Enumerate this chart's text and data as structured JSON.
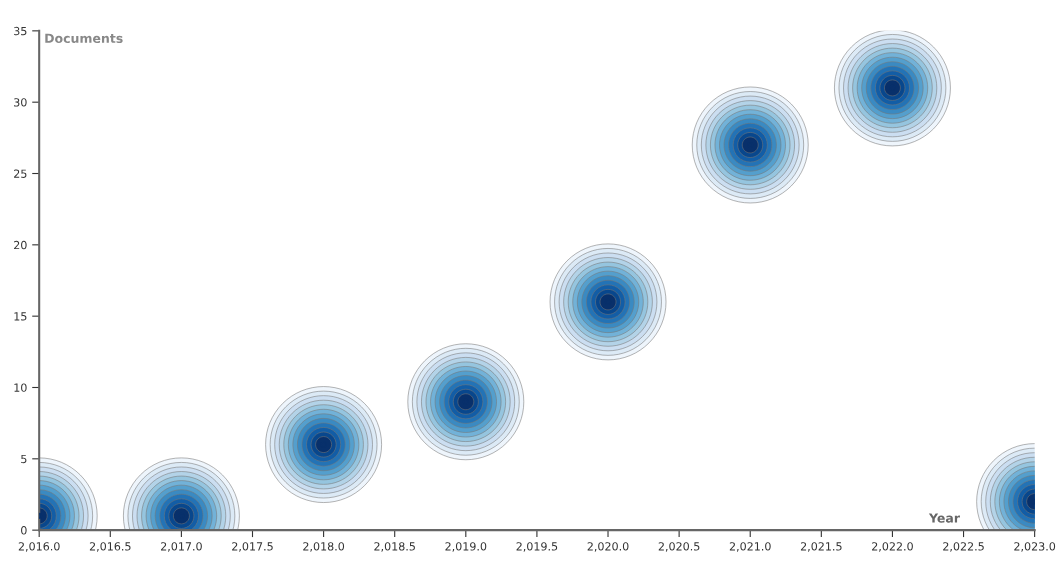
{
  "chart_data": {
    "type": "scatter",
    "xlabel": "Year",
    "ylabel": "Documents",
    "x": [
      2016,
      2017,
      2018,
      2019,
      2020,
      2021,
      2022,
      2023
    ],
    "series": [
      {
        "color": "#08306b",
        "values": [
          1,
          1,
          6,
          9,
          16,
          27,
          31,
          2
        ]
      }
    ],
    "marker": "circle",
    "xlim": [
      2016,
      2023
    ],
    "ylim": [
      0,
      35
    ],
    "xticks": [
      {
        "value": 2016,
        "label": "2,016.0"
      },
      {
        "value": 2016.5,
        "label": "2,016.5"
      },
      {
        "value": 2017,
        "label": "2,017.0"
      },
      {
        "value": 2017.5,
        "label": "2,017.5"
      },
      {
        "value": 2018,
        "label": "2,018.0"
      },
      {
        "value": 2018.5,
        "label": "2,018.5"
      },
      {
        "value": 2019,
        "label": "2,019.0"
      },
      {
        "value": 2019.5,
        "label": "2,019.5"
      },
      {
        "value": 2020,
        "label": "2,020.0"
      },
      {
        "value": 2020.5,
        "label": "2,020.5"
      },
      {
        "value": 2021,
        "label": "2,021.0"
      },
      {
        "value": 2021.5,
        "label": "2,021.5"
      },
      {
        "value": 2022,
        "label": "2,022.0"
      },
      {
        "value": 2022.5,
        "label": "2,022.5"
      },
      {
        "value": 2023,
        "label": "2,023.0"
      }
    ],
    "yticks": [
      0,
      5,
      10,
      15,
      20,
      25,
      30,
      35
    ],
    "grid": false
  }
}
